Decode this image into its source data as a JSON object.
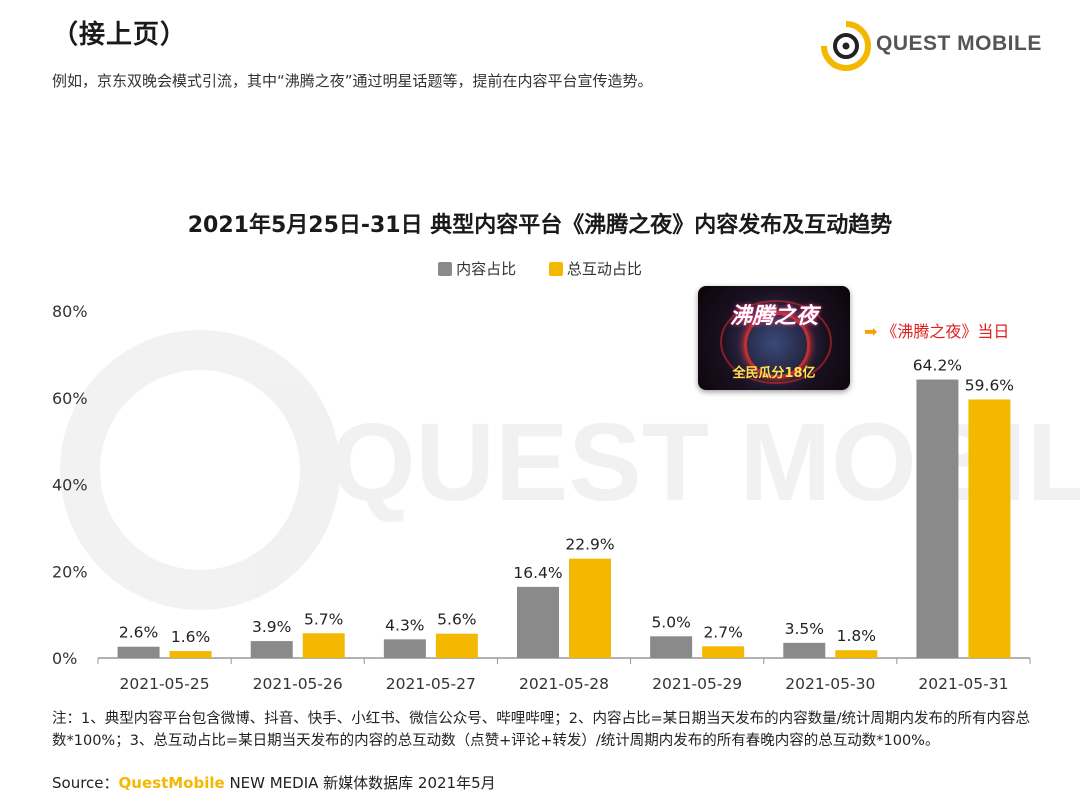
{
  "header": {
    "title": "（接上页）",
    "intro": "例如，京东双晚会模式引流，其中“沸腾之夜”通过明星话题等，提前在内容平台宣传造势。"
  },
  "logo": {
    "text": "QUEST MOBILE",
    "watermark": "QUEST MOBILE"
  },
  "callout": {
    "image_title": "沸腾之夜",
    "image_subtitle": "全民瓜分18亿",
    "label": "《沸腾之夜》当日",
    "arrow_icon": "arrow-right-icon"
  },
  "notes": {
    "text": "注：1、典型内容平台包含微博、抖音、快手、小红书、微信公众号、哔哩哔哩；2、内容占比=某日期当天发布的内容数量/统计周期内发布的所有内容总数*100%；3、总互动占比=某日期当天发布的内容的总互动数（点赞+评论+转发）/统计周期内发布的所有春晚内容的总互动数*100%。"
  },
  "source": {
    "prefix": "Source：",
    "brand": "QuestMobile",
    "rest": " NEW MEDIA 新媒体数据库 2021年5月"
  },
  "colors": {
    "series1": "#8a8a8a",
    "series2": "#f5b800",
    "brand": "#f5b800",
    "accent": "#e02020"
  },
  "chart_data": {
    "type": "bar",
    "title": "2021年5月25日-31日 典型内容平台《沸腾之夜》内容发布及互动趋势",
    "categories": [
      "2021-05-25",
      "2021-05-26",
      "2021-05-27",
      "2021-05-28",
      "2021-05-29",
      "2021-05-30",
      "2021-05-31"
    ],
    "series": [
      {
        "name": "内容占比",
        "values": [
          2.6,
          3.9,
          4.3,
          16.4,
          5.0,
          3.5,
          64.2
        ],
        "labels": [
          "2.6%",
          "3.9%",
          "4.3%",
          "16.4%",
          "5.0%",
          "3.5%",
          "64.2%"
        ]
      },
      {
        "name": "总互动占比",
        "values": [
          1.6,
          5.7,
          5.6,
          22.9,
          2.7,
          1.8,
          59.6
        ],
        "labels": [
          "1.6%",
          "5.7%",
          "5.6%",
          "22.9%",
          "2.7%",
          "1.8%",
          "59.6%"
        ]
      }
    ],
    "yticks": [
      "0%",
      "20%",
      "40%",
      "60%",
      "80%"
    ],
    "ylim": [
      0,
      80
    ],
    "grid": false,
    "legend": "top-center"
  }
}
